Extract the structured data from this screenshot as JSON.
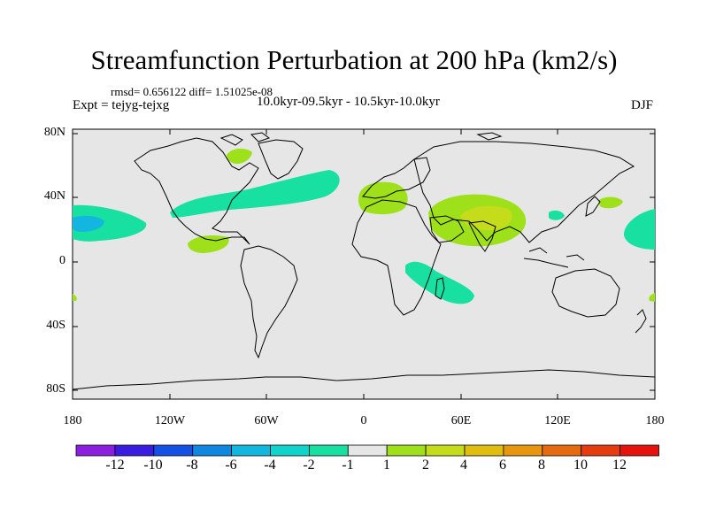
{
  "title": "Streamfunction Perturbation at 200 hPa (km2/s)",
  "stats": "rmsd= 0.656122 diff= 1.51025e-08",
  "period": "10.0kyr-09.5kyr - 10.5kyr-10.0kyr",
  "expt": "Expt = tejyg-tejxg",
  "season": "DJF",
  "lat_labels": [
    "80N",
    "40N",
    "0",
    "40S",
    "80S"
  ],
  "lon_labels": [
    "180",
    "120W",
    "60W",
    "0",
    "60E",
    "120E",
    "180"
  ],
  "colorbar": {
    "levels": [
      "-12",
      "-10",
      "-8",
      "-6",
      "-4",
      "-2",
      "-1",
      "1",
      "2",
      "4",
      "6",
      "8",
      "10",
      "12"
    ],
    "colors": [
      "#8c1ee0",
      "#3a1be0",
      "#1450e6",
      "#0f86e0",
      "#13b6de",
      "#10d3cc",
      "#18e0a0",
      "#e6e6e6",
      "#9ee01a",
      "#c4dc1a",
      "#e0be10",
      "#e6960f",
      "#e66a10",
      "#e63a0f",
      "#e6120f"
    ]
  },
  "colors": {
    "background": "#e6e6e6",
    "coast": "#000000"
  }
}
